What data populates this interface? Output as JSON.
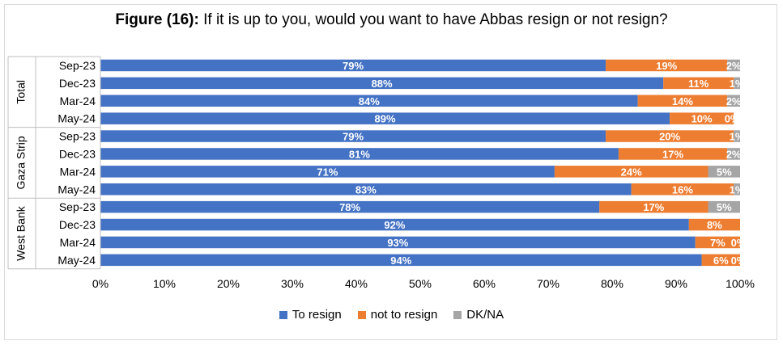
{
  "chart_data": {
    "type": "bar",
    "orientation": "horizontal",
    "stacked": "percent",
    "title_prefix": "Figure (16):",
    "title_text": "If it is up to you, would you want to have Abbas resign or not resign?",
    "groups": [
      {
        "name": "Total",
        "categories": [
          "Sep-23",
          "Dec-23",
          "Mar-24",
          "May-24"
        ]
      },
      {
        "name": "Gaza Strip",
        "categories": [
          "Sep-23",
          "Dec-23",
          "Mar-24",
          "May-24"
        ]
      },
      {
        "name": "West Bank",
        "categories": [
          "Sep-23",
          "Dec-23",
          "Mar-24",
          "May-24"
        ]
      }
    ],
    "series": [
      {
        "name": "To resign",
        "color": "#4472c4",
        "values": [
          79,
          88,
          84,
          89,
          79,
          81,
          71,
          83,
          78,
          92,
          93,
          94
        ]
      },
      {
        "name": "not to resign",
        "color": "#ed7d31",
        "values": [
          19,
          11,
          14,
          10,
          20,
          17,
          24,
          16,
          17,
          8,
          7,
          6
        ]
      },
      {
        "name": "DK/NA",
        "color": "#a5a5a5",
        "values": [
          2,
          1,
          2,
          0,
          1,
          2,
          5,
          1,
          5,
          0,
          0,
          0
        ]
      }
    ],
    "data_labels": [
      [
        "79%",
        "88%",
        "84%",
        "89%",
        "79%",
        "81%",
        "71%",
        "83%",
        "78%",
        "92%",
        "93%",
        "94%"
      ],
      [
        "19%",
        "11%",
        "14%",
        "10%",
        "20%",
        "17%",
        "24%",
        "16%",
        "17%",
        "8%",
        "7%",
        "6%"
      ],
      [
        "2%",
        "1%",
        "2%",
        "0%",
        "1%",
        "2%",
        "5%",
        "1%",
        "5%",
        "",
        "0%",
        "0%"
      ]
    ],
    "xaxis": {
      "ticks": [
        "0%",
        "10%",
        "20%",
        "30%",
        "40%",
        "50%",
        "60%",
        "70%",
        "80%",
        "90%",
        "100%"
      ],
      "range": [
        0,
        100
      ]
    },
    "grid": false,
    "legend_position": "bottom"
  }
}
